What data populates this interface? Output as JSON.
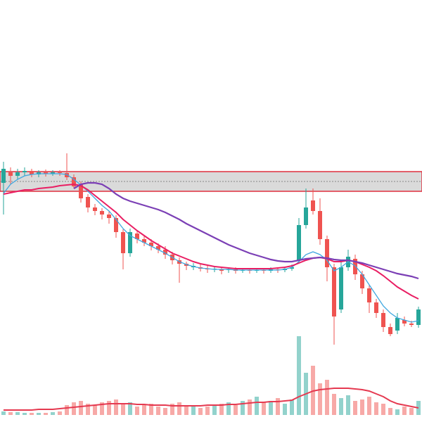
{
  "chart_data": {
    "type": "candlestick",
    "ylim": [
      0,
      600
    ],
    "up_color": "#26a69a",
    "down_color": "#ef5350",
    "open": [
      340,
      355,
      350,
      355,
      357,
      352,
      355,
      353,
      355,
      354,
      348,
      338,
      320,
      305,
      300,
      295,
      290,
      270,
      240,
      268,
      260,
      255,
      250,
      245,
      238,
      230,
      225,
      220,
      220,
      218,
      217,
      217,
      216,
      217,
      215,
      216,
      215,
      216,
      215,
      217,
      216,
      218,
      230,
      280,
      315,
      300,
      260,
      220,
      160,
      220,
      232,
      210,
      190,
      170,
      155,
      135,
      130,
      145,
      140,
      138
    ],
    "high": [
      370,
      362,
      360,
      362,
      360,
      358,
      359,
      358,
      358,
      382,
      352,
      342,
      324,
      310,
      304,
      300,
      294,
      274,
      275,
      272,
      264,
      260,
      254,
      250,
      242,
      234,
      228,
      226,
      224,
      222,
      221,
      220,
      220,
      220,
      219,
      219,
      219,
      219,
      220,
      220,
      221,
      224,
      290,
      332,
      332,
      318,
      265,
      225,
      230,
      245,
      238,
      215,
      195,
      175,
      160,
      140,
      155,
      150,
      144,
      164
    ],
    "low": [
      295,
      338,
      345,
      350,
      348,
      348,
      349,
      350,
      350,
      344,
      332,
      312,
      298,
      294,
      288,
      282,
      262,
      217,
      235,
      254,
      250,
      244,
      240,
      232,
      224,
      198,
      216,
      216,
      214,
      212,
      213,
      210,
      212,
      211,
      212,
      211,
      212,
      211,
      212,
      212,
      213,
      215,
      225,
      275,
      295,
      252,
      200,
      110,
      155,
      215,
      202,
      182,
      155,
      148,
      128,
      122,
      125,
      136,
      135,
      134
    ],
    "close": [
      360,
      350,
      355,
      357,
      352,
      355,
      353,
      355,
      354,
      348,
      335,
      318,
      305,
      300,
      295,
      290,
      270,
      240,
      270,
      260,
      255,
      250,
      245,
      238,
      230,
      225,
      222,
      222,
      218,
      217,
      218,
      215,
      217,
      215,
      216,
      215,
      216,
      215,
      217,
      216,
      218,
      220,
      280,
      305,
      300,
      260,
      220,
      150,
      220,
      235,
      210,
      190,
      170,
      155,
      135,
      125,
      148,
      140,
      138,
      160
    ],
    "moving_averages": [
      {
        "color": "#3fa7e0",
        "values": [
          325,
          338,
          345,
          350,
          352,
          353,
          353,
          353,
          353,
          352,
          345,
          337,
          328,
          318,
          308,
          300,
          288,
          275,
          265,
          260,
          255,
          250,
          245,
          240,
          234,
          228,
          224,
          221,
          219,
          218,
          217,
          217,
          217,
          216,
          216,
          216,
          216,
          216,
          216,
          216,
          217,
          220,
          228,
          238,
          242,
          238,
          230,
          215,
          220,
          228,
          222,
          210,
          195,
          180,
          165,
          155,
          148,
          145,
          142,
          144
        ]
      },
      {
        "color": "#e91e63",
        "values": [
          324,
          326,
          328,
          330,
          330,
          332,
          333,
          334,
          336,
          337,
          338,
          336,
          330,
          322,
          314,
          306,
          298,
          288,
          280,
          272,
          265,
          258,
          252,
          246,
          240,
          236,
          232,
          228,
          225,
          223,
          221,
          220,
          219,
          218,
          218,
          218,
          218,
          218,
          218,
          219,
          220,
          222,
          226,
          230,
          233,
          234,
          232,
          228,
          228,
          230,
          228,
          224,
          220,
          215,
          208,
          200,
          192,
          186,
          180,
          175
        ]
      },
      {
        "color": "#7b3fb5",
        "values": [
          null,
          null,
          null,
          null,
          null,
          null,
          null,
          null,
          null,
          null,
          332,
          338,
          340,
          340,
          338,
          332,
          324,
          318,
          314,
          311,
          308,
          305,
          302,
          298,
          293,
          288,
          282,
          277,
          272,
          267,
          262,
          257,
          252,
          248,
          244,
          240,
          237,
          234,
          231,
          229,
          228,
          228,
          230,
          232,
          233,
          234,
          233,
          231,
          230,
          230,
          228,
          226,
          223,
          220,
          217,
          214,
          211,
          209,
          207,
          204
        ]
      }
    ],
    "volume": {
      "ylim": [
        0,
        150
      ],
      "values": [
        5,
        4,
        4,
        3,
        3,
        3,
        3,
        4,
        5,
        14,
        18,
        20,
        16,
        14,
        18,
        20,
        22,
        15,
        18,
        12,
        14,
        16,
        12,
        10,
        16,
        18,
        14,
        12,
        10,
        12,
        14,
        16,
        18,
        14,
        20,
        22,
        26,
        18,
        20,
        24,
        16,
        22,
        112,
        60,
        70,
        45,
        50,
        30,
        24,
        28,
        20,
        22,
        26,
        18,
        16,
        10,
        8,
        12,
        10,
        20
      ],
      "ma_color": "#e53950",
      "ma_values": [
        7,
        7,
        7,
        7,
        7,
        8,
        8,
        8,
        9,
        10,
        11,
        12,
        13,
        14,
        15,
        16,
        16,
        16,
        16,
        15,
        15,
        14,
        14,
        14,
        13,
        13,
        13,
        13,
        13,
        14,
        14,
        14,
        15,
        15,
        16,
        17,
        18,
        18,
        19,
        19,
        20,
        21,
        26,
        30,
        34,
        36,
        37,
        38,
        38,
        38,
        37,
        36,
        34,
        30,
        26,
        20,
        16,
        14,
        12,
        10
      ]
    },
    "zone": {
      "top": 356,
      "bottom": 328,
      "mid": 342,
      "fill": "#d3d3d3",
      "border": "#e0303f"
    }
  }
}
